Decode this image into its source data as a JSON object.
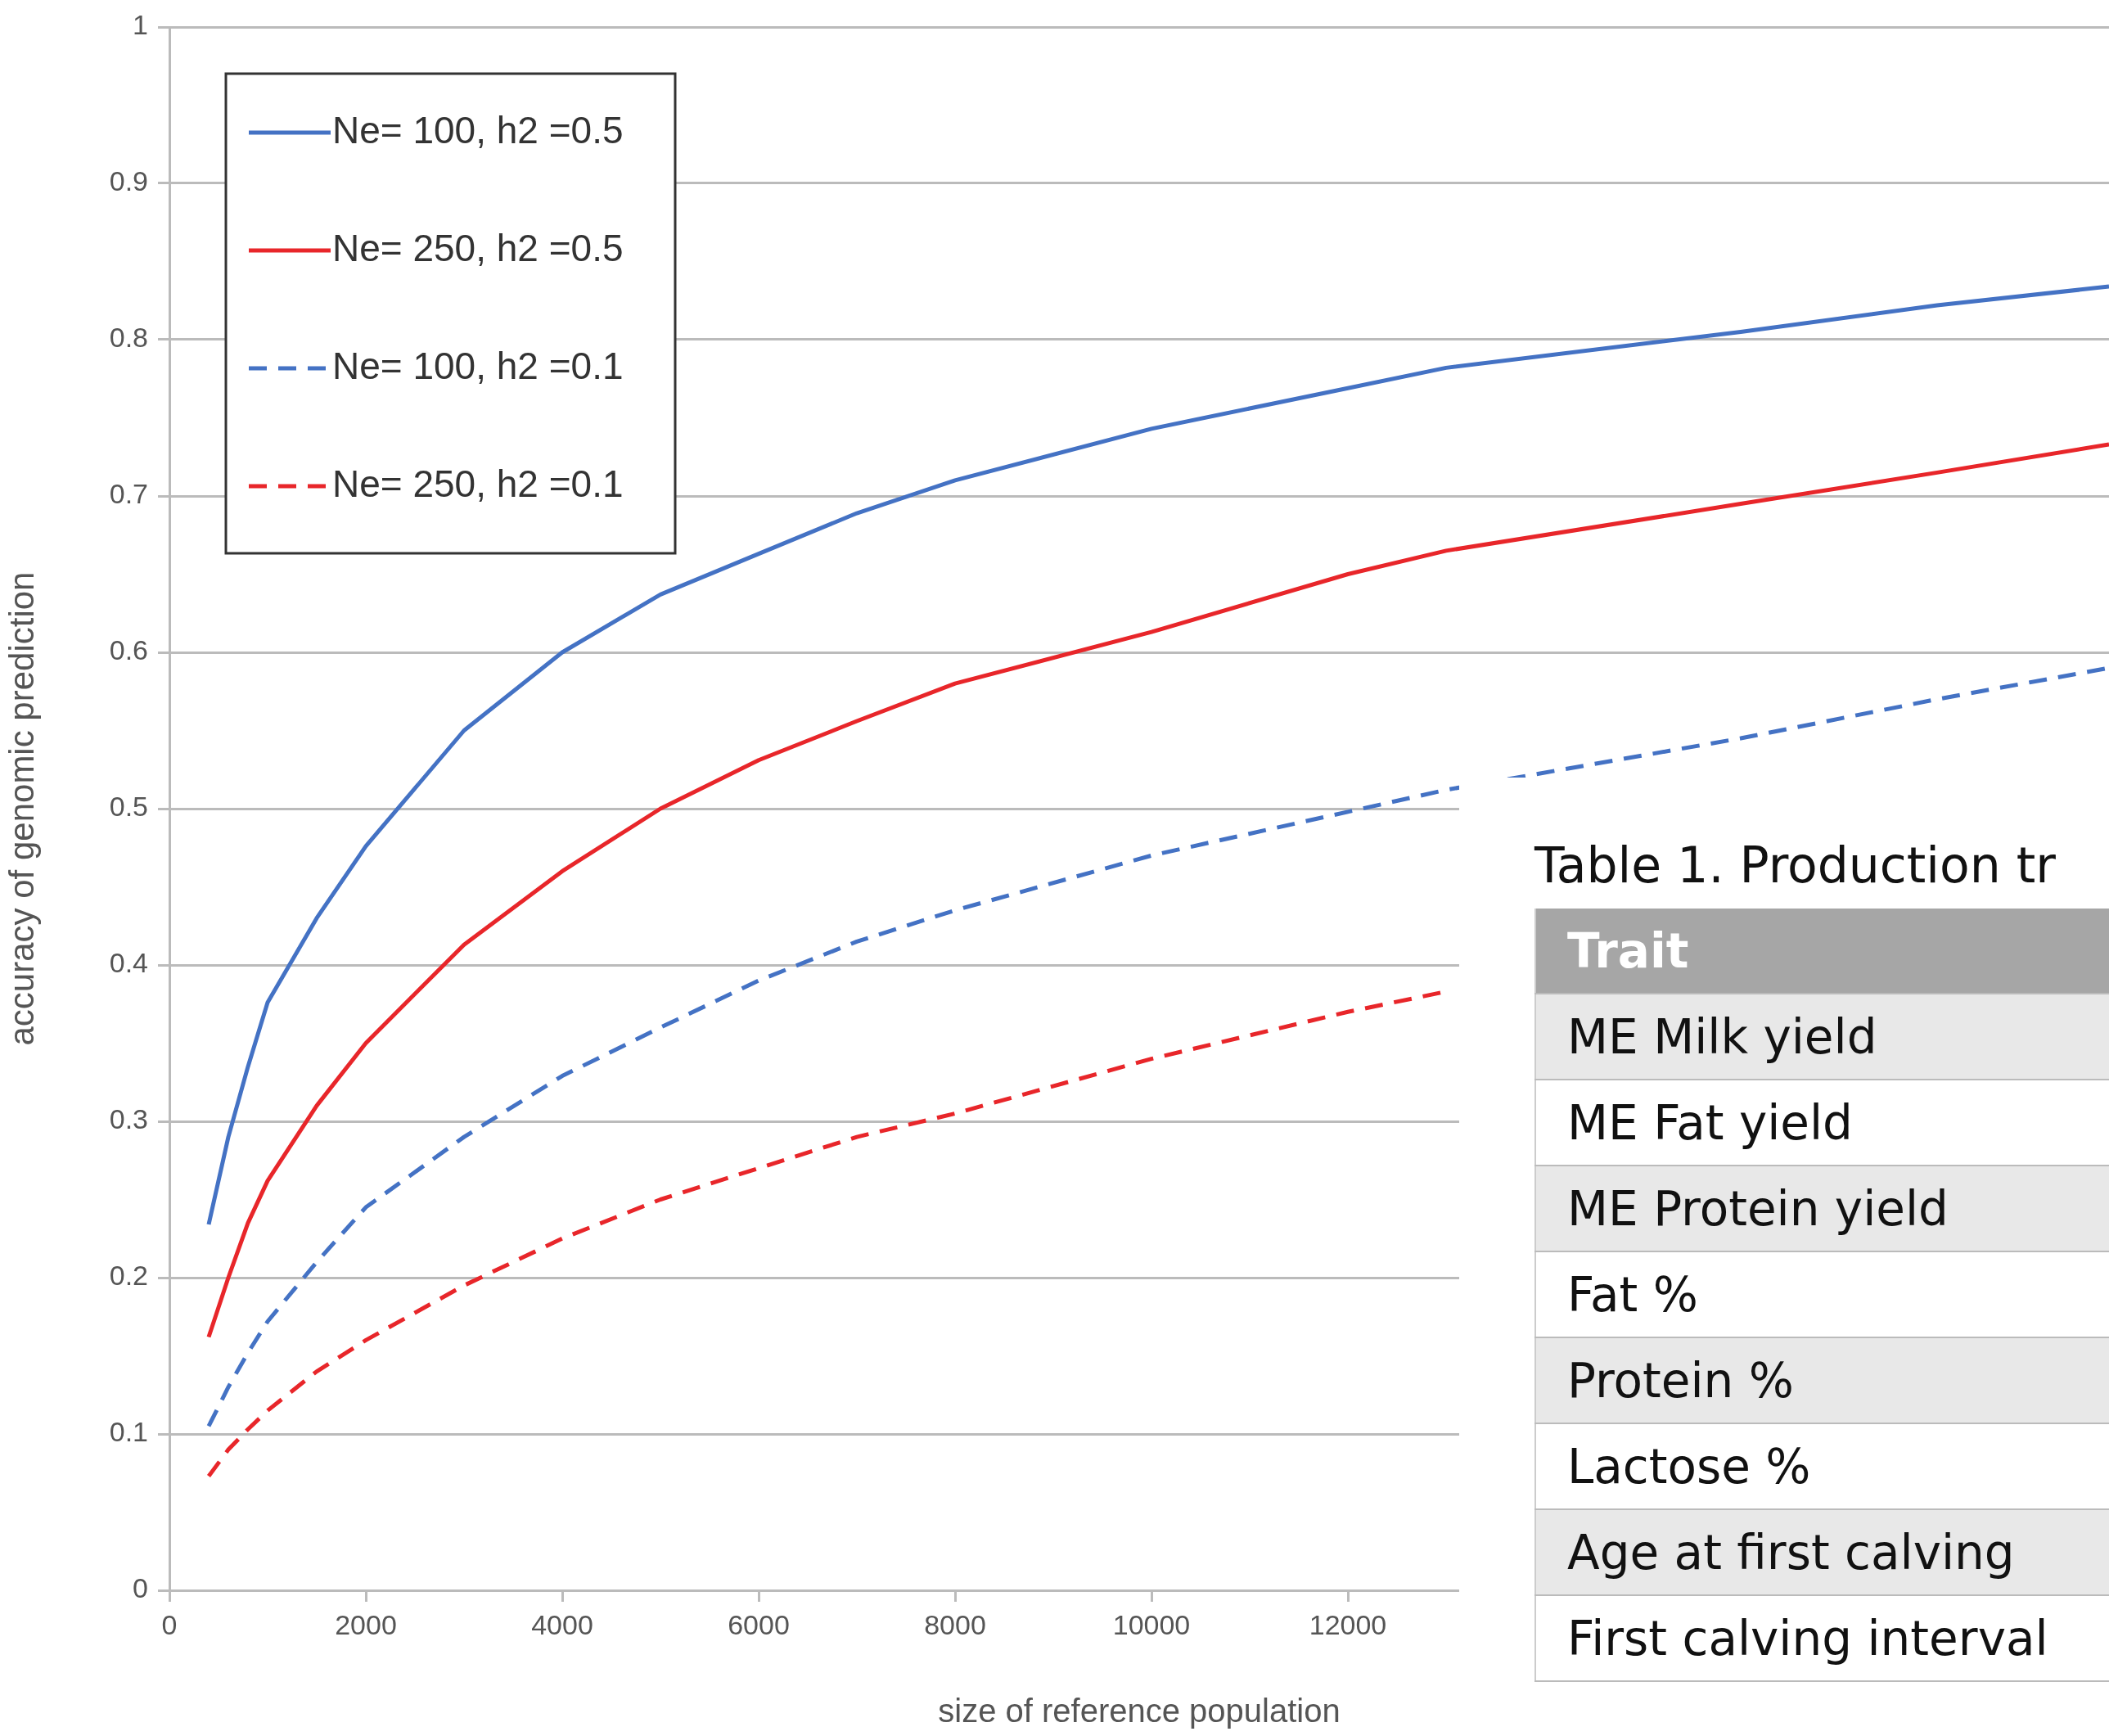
{
  "chart_data": {
    "type": "line",
    "xlabel": "size of reference population",
    "ylabel": "accuracy of genomic prediction",
    "x": [
      400,
      600,
      800,
      1000,
      1500,
      2000,
      3000,
      4000,
      5000,
      6000,
      7000,
      8000,
      10000,
      12000,
      13000,
      16000,
      18000,
      19750
    ],
    "series": [
      {
        "name": "Ne= 100, h2 =0.5",
        "color": "#4472c4",
        "line_style": "solid",
        "values": [
          0.234,
          0.29,
          0.335,
          0.376,
          0.43,
          0.476,
          0.55,
          0.6,
          0.637,
          0.663,
          0.689,
          0.71,
          0.743,
          0.769,
          0.782,
          0.805,
          0.822,
          0.834
        ]
      },
      {
        "name": "Ne= 250, h2 =0.5",
        "color": "#e8262a",
        "line_style": "solid",
        "values": [
          0.162,
          0.2,
          0.235,
          0.262,
          0.31,
          0.35,
          0.413,
          0.46,
          0.5,
          0.531,
          0.556,
          0.58,
          0.613,
          0.65,
          0.665,
          0.695,
          0.715,
          0.733
        ]
      },
      {
        "name": "Ne= 100, h2 =0.1",
        "color": "#4472c4",
        "line_style": "dashed",
        "values": [
          0.105,
          0.13,
          0.152,
          0.172,
          0.21,
          0.245,
          0.29,
          0.329,
          0.36,
          0.39,
          0.415,
          0.435,
          0.47,
          0.498,
          0.512,
          0.545,
          0.57,
          0.59
        ]
      },
      {
        "name": "Ne= 250, h2 =0.1",
        "color": "#e8262a",
        "line_style": "dashed",
        "values": [
          0.073,
          0.09,
          0.103,
          0.115,
          0.14,
          0.16,
          0.195,
          0.225,
          0.25,
          0.27,
          0.29,
          0.305,
          0.34,
          0.37,
          0.383,
          null,
          null,
          null
        ]
      }
    ],
    "xlim": [
      0,
      19750
    ],
    "xticks": [
      0,
      2000,
      4000,
      6000,
      8000,
      10000,
      12000
    ],
    "ylim": [
      0,
      1
    ],
    "yticks": [
      0,
      0.1,
      0.2,
      0.3,
      0.4,
      0.5,
      0.6,
      0.7,
      0.8,
      0.9,
      1
    ],
    "grid": "y",
    "legend": "top left",
    "marker": "none",
    "annotations": [
      "Table 1. Production tr",
      "Trait",
      "ME Milk yield",
      "ME Fat yield",
      "ME Protein yield",
      "Fat %",
      "Protein %",
      "Lactose %",
      "Age at first calving",
      "First calving interval"
    ]
  }
}
